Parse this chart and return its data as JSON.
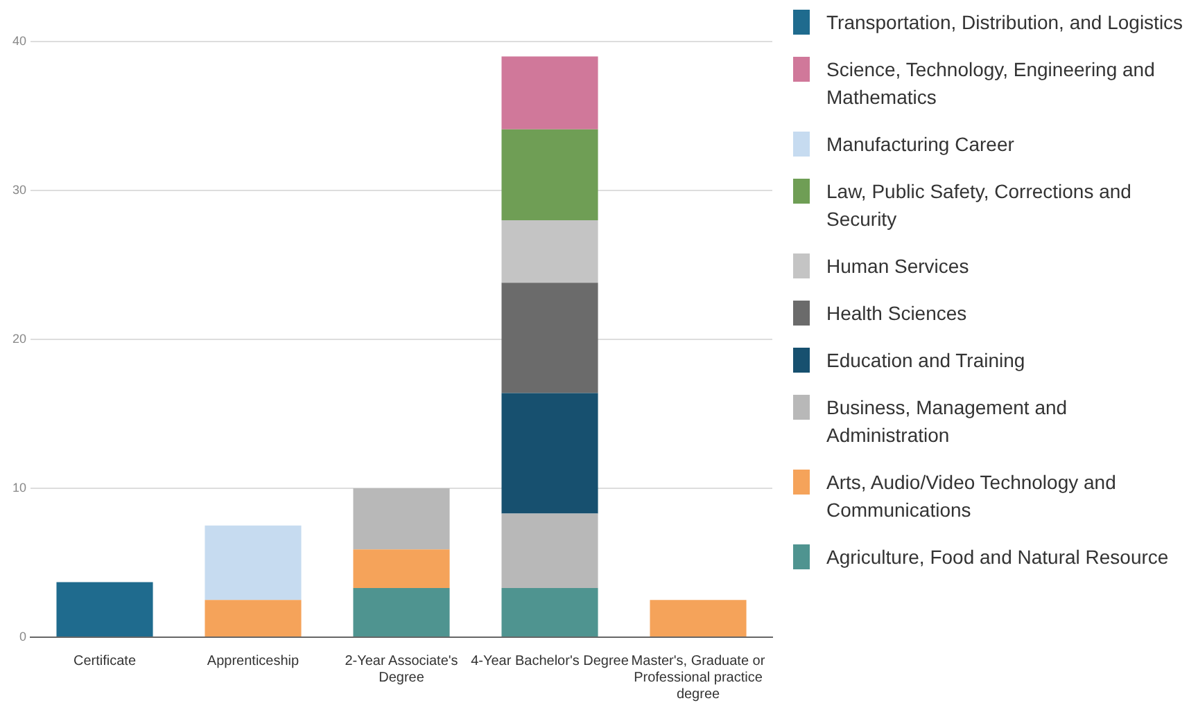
{
  "chart_data": {
    "type": "bar",
    "stacked": true,
    "categories": [
      "Certificate",
      "Apprenticeship",
      "2-Year Associate's Degree",
      "4-Year Bachelor's Degree",
      "Master's, Graduate or Professional practice degree"
    ],
    "series": [
      {
        "name": "Agriculture, Food and Natural Resource",
        "color": "#4f9490",
        "values": [
          null,
          null,
          3.3,
          3.3,
          null
        ]
      },
      {
        "name": "Arts, Audio/Video Technology and Communications",
        "color": "#f5a35a",
        "values": [
          null,
          2.5,
          2.6,
          null,
          2.5
        ]
      },
      {
        "name": "Business, Management and Administration",
        "color": "#b8b8b8",
        "values": [
          null,
          null,
          4.1,
          5,
          null
        ]
      },
      {
        "name": "Education and Training",
        "color": "#17506f",
        "values": [
          null,
          null,
          null,
          8.1,
          null
        ]
      },
      {
        "name": "Health Sciences",
        "color": "#6b6b6b",
        "values": [
          null,
          null,
          null,
          7.4,
          null
        ]
      },
      {
        "name": "Human Services",
        "color": "#c4c4c4",
        "values": [
          null,
          null,
          null,
          4.2,
          null
        ]
      },
      {
        "name": "Law, Public Safety, Corrections and Security",
        "color": "#6f9e55",
        "values": [
          null,
          null,
          null,
          6.1,
          null
        ]
      },
      {
        "name": "Manufacturing Career",
        "color": "#c6dbf0",
        "values": [
          null,
          5,
          null,
          null,
          null
        ]
      },
      {
        "name": "Science, Technology, Engineering and Mathematics",
        "color": "#d0789a",
        "values": [
          null,
          null,
          null,
          4.9,
          null
        ]
      },
      {
        "name": "Transportation, Distribution, and Logistics",
        "color": "#1f6b8e",
        "values": [
          3.7,
          null,
          null,
          null,
          null
        ]
      }
    ],
    "ylim": [
      0,
      40
    ],
    "yticks": [
      0,
      10,
      20,
      30,
      40
    ],
    "grid": "y",
    "legend": "right"
  }
}
